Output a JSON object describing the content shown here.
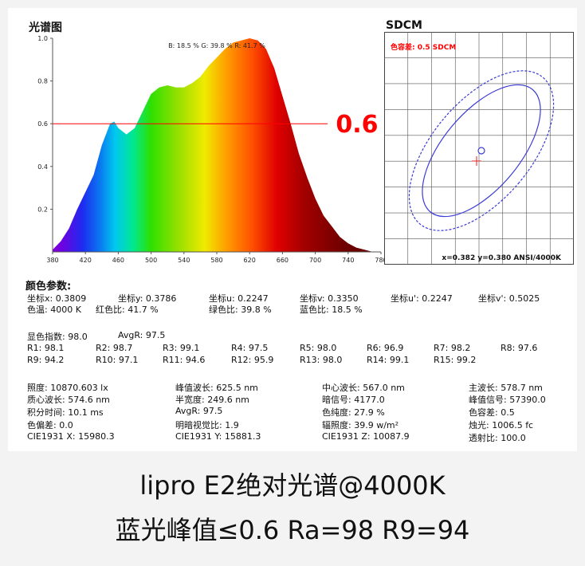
{
  "spectrum_title": "光谱图",
  "sdcm_title": "SDCM",
  "chart_data": [
    {
      "type": "area",
      "title": "光谱图",
      "subtitle": "B: 18.5 %  G: 39.8 %  R: 41.7 %",
      "xlabel": "",
      "ylabel": "",
      "xlim": [
        380,
        780
      ],
      "ylim": [
        0,
        1.0
      ],
      "x_ticks": [
        380,
        420,
        460,
        500,
        540,
        580,
        620,
        660,
        700,
        740,
        780
      ],
      "y_ticks": [
        0.2,
        0.4,
        0.6,
        0.8,
        1.0
      ],
      "grid": false,
      "x": [
        380,
        390,
        400,
        410,
        420,
        430,
        440,
        450,
        455,
        460,
        470,
        480,
        490,
        500,
        510,
        520,
        530,
        540,
        550,
        560,
        570,
        580,
        590,
        600,
        610,
        620,
        630,
        640,
        650,
        660,
        670,
        680,
        690,
        700,
        710,
        720,
        730,
        740,
        750,
        760,
        770,
        780
      ],
      "y": [
        0.01,
        0.05,
        0.11,
        0.2,
        0.28,
        0.36,
        0.5,
        0.6,
        0.61,
        0.58,
        0.55,
        0.58,
        0.66,
        0.74,
        0.77,
        0.78,
        0.77,
        0.77,
        0.79,
        0.82,
        0.87,
        0.91,
        0.95,
        0.98,
        0.99,
        1.0,
        0.99,
        0.95,
        0.86,
        0.73,
        0.6,
        0.46,
        0.35,
        0.25,
        0.17,
        0.12,
        0.07,
        0.04,
        0.02,
        0.01,
        0.0,
        0.0
      ],
      "annotations": [
        {
          "label": "0.6",
          "y": 0.6,
          "color": "#ff0000"
        }
      ]
    },
    {
      "type": "scatter",
      "title": "SDCM",
      "subtitle": "色容差: 0.5 SDCM",
      "footer": "x=0.382 y=0.380 ANSI/4000K",
      "point": {
        "x": 0.382,
        "y": 0.38
      }
    }
  ],
  "params_title": "颜色参数:",
  "rows": [
    [
      "坐标x: 0.3809",
      "坐标y: 0.3786",
      "坐标u: 0.2247",
      "坐标v: 0.3350",
      "坐标u': 0.2247",
      "坐标v': 0.5025"
    ],
    [
      "色温: 4000 K",
      "红色比: 41.7 %",
      "绿色比: 39.8 %",
      "蓝色比: 18.5 %"
    ],
    [
      "显色指数: 98.0",
      "AvgR: 97.5"
    ],
    [
      "R1: 98.1",
      "R2: 98.7",
      "R3: 99.1",
      "R4: 97.5",
      "R5: 98.0",
      "R6: 96.9",
      "R7: 98.2",
      "R8: 97.6"
    ],
    [
      "R9: 94.2",
      "R10: 97.1",
      "R11: 94.6",
      "R12: 95.9",
      "R13: 98.0",
      "R14: 99.1",
      "R15: 99.2"
    ],
    [
      "照度: 10870.603 lx",
      "峰值波长: 625.5 nm",
      "中心波长: 567.0 nm",
      "主波长: 578.7 nm"
    ],
    [
      "质心波长: 574.6 nm",
      "半宽度: 249.6 nm",
      "暗信号: 4177.0",
      "峰值信号: 57390.0"
    ],
    [
      "积分时间: 10.1 ms",
      "AvgR: 97.5",
      "色纯度: 27.9 %",
      "色容差: 0.5"
    ],
    [
      "色偏差: 0.0",
      "明暗视觉比: 1.9",
      "辐照度: 39.9 w/m²",
      "烛光: 1006.5 fc"
    ],
    [
      "CIE1931 X: 15980.3",
      "CIE1931 Y: 15881.3",
      "CIE1931 Z: 10087.9",
      "透射比: 100.0"
    ]
  ],
  "caption": {
    "line1": "lipro E2绝对光谱@4000K",
    "line2": "蓝光峰值≤0.6 Ra=98 R9=94"
  },
  "colors": {
    "marker_line": "#ff0000",
    "sdcm_ellipse": "#3b3bd6",
    "cross": "#e02020"
  }
}
